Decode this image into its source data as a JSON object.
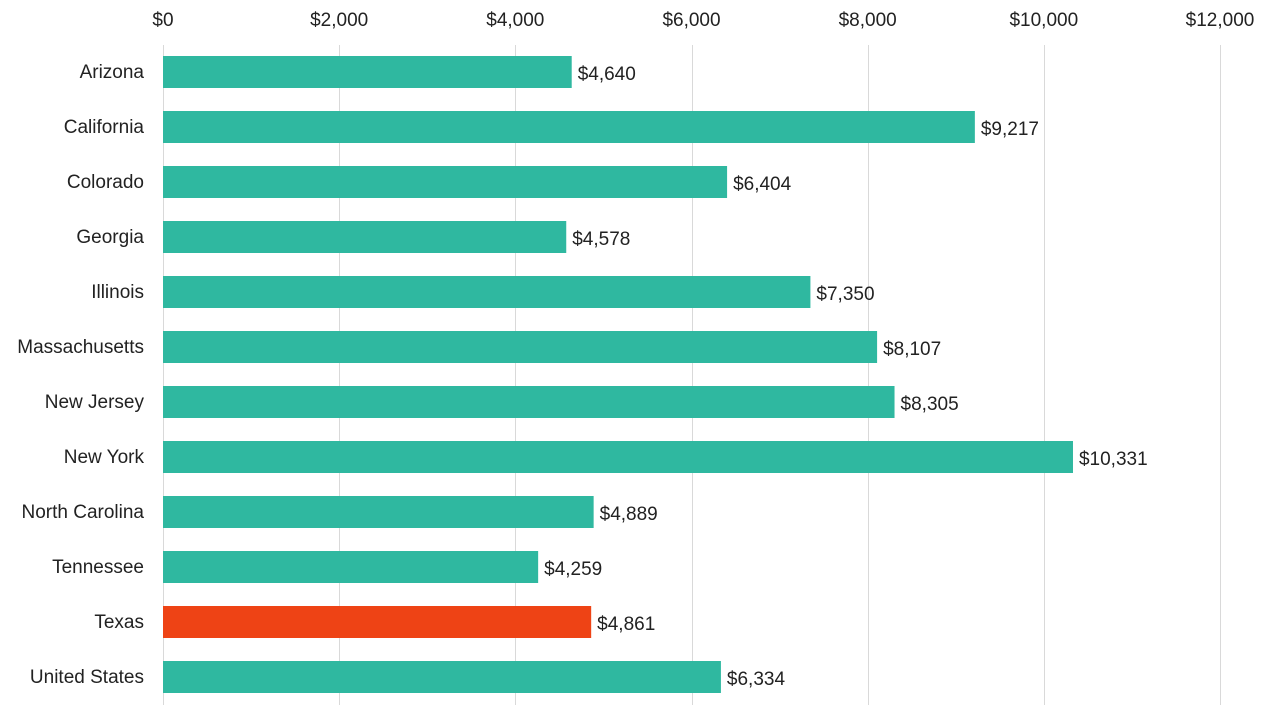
{
  "chart_data": {
    "type": "bar",
    "orientation": "horizontal",
    "categories": [
      "Arizona",
      "California",
      "Colorado",
      "Georgia",
      "Illinois",
      "Massachusetts",
      "New Jersey",
      "New York",
      "North Carolina",
      "Tennessee",
      "Texas",
      "United States"
    ],
    "values": [
      4640,
      9217,
      6404,
      4578,
      7350,
      8107,
      8305,
      10331,
      4889,
      4259,
      4861,
      6334
    ],
    "data_labels": [
      "$4,640",
      "$9,217",
      "$6,404",
      "$4,578",
      "$7,350",
      "$8,107",
      "$8,305",
      "$10,331",
      "$4,889",
      "$4,259",
      "$4,861",
      "$6,334"
    ],
    "x_ticks": [
      0,
      2000,
      4000,
      6000,
      8000,
      10000,
      12000
    ],
    "x_tick_labels": [
      "$0",
      "$2,000",
      "$4,000",
      "$6,000",
      "$8,000",
      "$10,000",
      "$12,000"
    ],
    "xlim": [
      0,
      12000
    ],
    "x_axis_position": "top",
    "grid": true,
    "title": "",
    "xlabel": "",
    "ylabel": "",
    "colors": {
      "default": "#2FB8A0",
      "highlight": "#EE4315",
      "highlight_category": "Texas"
    }
  }
}
